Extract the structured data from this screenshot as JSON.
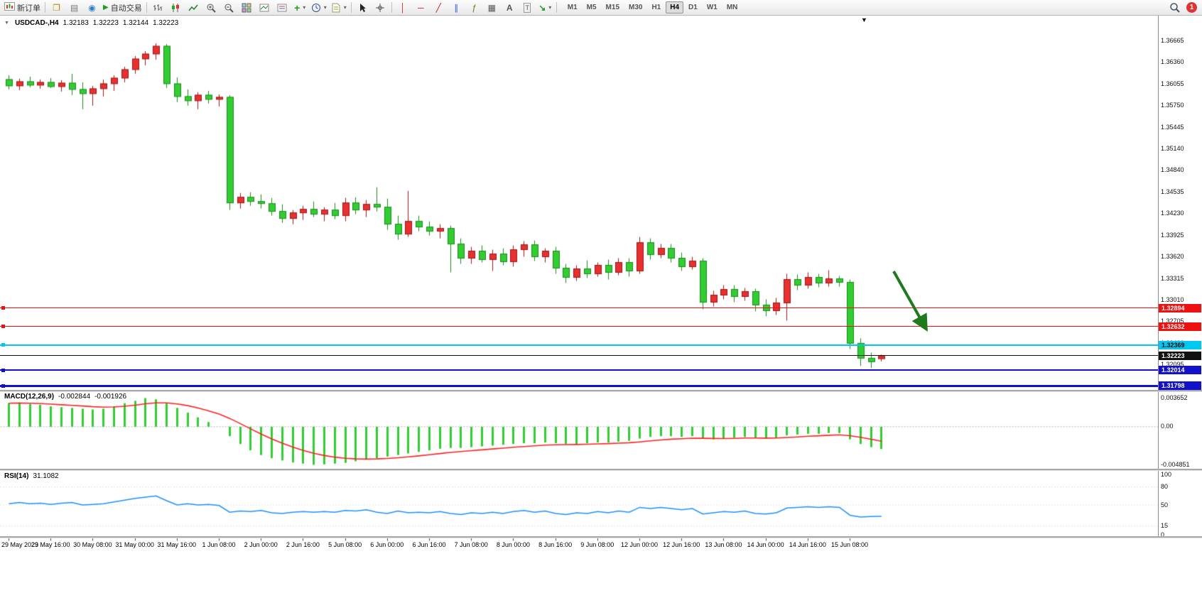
{
  "toolbar": {
    "new_order_label": "新订单",
    "auto_trading_label": "自动交易",
    "timeframes": [
      "M1",
      "M5",
      "M15",
      "M30",
      "H1",
      "H4",
      "D1",
      "W1",
      "MN"
    ],
    "active_timeframe": "H4",
    "notification_count": "1"
  },
  "icons": {
    "collapse": "▼",
    "shift_marker": "▼",
    "caret": "▾",
    "windows": "❐",
    "profiles": "▤",
    "alerts": "◉",
    "autotrade_play": "▶",
    "add_indicator": "+",
    "vline": "│",
    "hline": "─",
    "trendline": "╱",
    "channel": "∥",
    "fibonacci": "ƒ",
    "shapes": "▦",
    "text": "A",
    "label": "T",
    "arrows": "↘"
  },
  "chart": {
    "header": {
      "symbol_period": "USDCAD-,H4",
      "open": "1.32183",
      "high": "1.32223",
      "low": "1.32144",
      "close": "1.32223"
    },
    "price_axis_labels": [
      "1.36665",
      "1.36360",
      "1.36055",
      "1.35750",
      "1.35445",
      "1.35140",
      "1.34840",
      "1.34535",
      "1.34230",
      "1.33925",
      "1.33620",
      "1.33315",
      "1.33010",
      "1.32705",
      "1.32400",
      "1.32095",
      "1.31790"
    ],
    "levels": [
      {
        "name": "resistance-line-1",
        "label": "1.32894",
        "value": 1.32894,
        "color": "#ee1111",
        "text_color": "#ffffff",
        "thickness": 1,
        "handle": true
      },
      {
        "name": "resistance-line-2",
        "label": "1.32632",
        "value": 1.32632,
        "color": "#ee1111",
        "text_color": "#ffffff",
        "thickness": 1,
        "handle": true
      },
      {
        "name": "support-line-cyan",
        "label": "1.32369",
        "value": 1.32369,
        "color": "#00c8f0",
        "text_color": "#000000",
        "thickness": 2,
        "handle": true
      },
      {
        "name": "current-price-line",
        "label": "1.32223",
        "value": 1.32223,
        "color": "#111111",
        "text_color": "#ffffff",
        "thickness": 1,
        "handle": false
      },
      {
        "name": "support-line-blue-1",
        "label": "1.32014",
        "value": 1.32014,
        "color": "#1212cc",
        "text_color": "#ffffff",
        "thickness": 2,
        "handle": true
      },
      {
        "name": "support-line-blue-2",
        "label": "1.31798",
        "value": 1.31798,
        "color": "#1212cc",
        "text_color": "#ffffff",
        "thickness": 3,
        "handle": true
      }
    ],
    "annotation": {
      "type": "arrow",
      "direction": "down-right",
      "color": "#1f7a1f"
    }
  },
  "macd": {
    "title": "MACD(12,26,9)",
    "main_value": "-0.002844",
    "signal_value": "-0.001926",
    "axis_labels": [
      "0.003652",
      "0.00",
      "-0.004851"
    ]
  },
  "rsi": {
    "title": "RSI(14)",
    "value": "31.1082",
    "axis_labels": [
      "100",
      "80",
      "50",
      "15",
      "0"
    ]
  },
  "chart_data": [
    {
      "type": "candlestick",
      "title": "USDCAD- H4",
      "note": "red = bullish, green = bearish (Chinese color convention)",
      "up_color": "#e83030",
      "down_color": "#32cd32",
      "ylim": [
        1.3174,
        1.3682
      ],
      "x_tick_labels": [
        {
          "bar": 0,
          "label": "29 May 2023"
        },
        {
          "bar": 4,
          "label": "29 May 16:00"
        },
        {
          "bar": 8,
          "label": "30 May 08:00"
        },
        {
          "bar": 12,
          "label": "31 May 00:00"
        },
        {
          "bar": 16,
          "label": "31 May 16:00"
        },
        {
          "bar": 20,
          "label": "1 Jun 08:00"
        },
        {
          "bar": 24,
          "label": "2 Jun 00:00"
        },
        {
          "bar": 28,
          "label": "2 Jun 16:00"
        },
        {
          "bar": 32,
          "label": "5 Jun 08:00"
        },
        {
          "bar": 36,
          "label": "6 Jun 00:00"
        },
        {
          "bar": 40,
          "label": "6 Jun 16:00"
        },
        {
          "bar": 44,
          "label": "7 Jun 08:00"
        },
        {
          "bar": 48,
          "label": "8 Jun 00:00"
        },
        {
          "bar": 52,
          "label": "8 Jun 16:00"
        },
        {
          "bar": 56,
          "label": "9 Jun 08:00"
        },
        {
          "bar": 60,
          "label": "12 Jun 00:00"
        },
        {
          "bar": 64,
          "label": "12 Jun 16:00"
        },
        {
          "bar": 68,
          "label": "13 Jun 08:00"
        },
        {
          "bar": 72,
          "label": "14 Jun 00:00"
        },
        {
          "bar": 76,
          "label": "14 Jun 16:00"
        },
        {
          "bar": 80,
          "label": "15 Jun 08:00"
        }
      ],
      "ohlc": [
        [
          1.3612,
          1.3618,
          1.3598,
          1.3603
        ],
        [
          1.3603,
          1.3613,
          1.3597,
          1.3609
        ],
        [
          1.3609,
          1.3616,
          1.3601,
          1.3604
        ],
        [
          1.3604,
          1.3612,
          1.3599,
          1.3608
        ],
        [
          1.3608,
          1.3614,
          1.36,
          1.3602
        ],
        [
          1.3602,
          1.3611,
          1.3595,
          1.3607
        ],
        [
          1.3607,
          1.362,
          1.359,
          1.3598
        ],
        [
          1.3598,
          1.3608,
          1.357,
          1.3592
        ],
        [
          1.3592,
          1.3603,
          1.3575,
          1.3599
        ],
        [
          1.3599,
          1.3612,
          1.3588,
          1.3606
        ],
        [
          1.3606,
          1.3618,
          1.3596,
          1.3614
        ],
        [
          1.3614,
          1.363,
          1.3608,
          1.3626
        ],
        [
          1.3626,
          1.3645,
          1.362,
          1.3641
        ],
        [
          1.3641,
          1.3652,
          1.3632,
          1.3648
        ],
        [
          1.3648,
          1.3663,
          1.364,
          1.3659
        ],
        [
          1.3659,
          1.3662,
          1.36,
          1.3606
        ],
        [
          1.3606,
          1.3615,
          1.358,
          1.3588
        ],
        [
          1.3588,
          1.3598,
          1.3575,
          1.3582
        ],
        [
          1.3582,
          1.3594,
          1.357,
          1.359
        ],
        [
          1.359,
          1.3596,
          1.3578,
          1.3584
        ],
        [
          1.3584,
          1.3591,
          1.3574,
          1.3587
        ],
        [
          1.3587,
          1.359,
          1.3428,
          1.3438
        ],
        [
          1.3438,
          1.3452,
          1.343,
          1.3446
        ],
        [
          1.3446,
          1.3453,
          1.3434,
          1.344
        ],
        [
          1.344,
          1.345,
          1.343,
          1.3437
        ],
        [
          1.3437,
          1.3445,
          1.342,
          1.3426
        ],
        [
          1.3426,
          1.3436,
          1.341,
          1.3416
        ],
        [
          1.3416,
          1.3428,
          1.3408,
          1.3424
        ],
        [
          1.3424,
          1.3434,
          1.3414,
          1.3429
        ],
        [
          1.3429,
          1.344,
          1.3418,
          1.3422
        ],
        [
          1.3422,
          1.3432,
          1.3412,
          1.3428
        ],
        [
          1.3428,
          1.3438,
          1.3415,
          1.342
        ],
        [
          1.342,
          1.3445,
          1.3412,
          1.3438
        ],
        [
          1.3438,
          1.3446,
          1.3422,
          1.3428
        ],
        [
          1.3428,
          1.3442,
          1.3418,
          1.3436
        ],
        [
          1.3436,
          1.346,
          1.3426,
          1.3432
        ],
        [
          1.3432,
          1.3444,
          1.34,
          1.3408
        ],
        [
          1.3408,
          1.342,
          1.3386,
          1.3394
        ],
        [
          1.3394,
          1.3455,
          1.339,
          1.3412
        ],
        [
          1.3412,
          1.342,
          1.3398,
          1.3404
        ],
        [
          1.3404,
          1.3412,
          1.3392,
          1.3398
        ],
        [
          1.3398,
          1.3408,
          1.3388,
          1.3402
        ],
        [
          1.3402,
          1.3406,
          1.334,
          1.338
        ],
        [
          1.338,
          1.3388,
          1.3352,
          1.336
        ],
        [
          1.336,
          1.3376,
          1.3352,
          1.337
        ],
        [
          1.337,
          1.3378,
          1.3354,
          1.3358
        ],
        [
          1.3358,
          1.3372,
          1.3342,
          1.3366
        ],
        [
          1.3366,
          1.3374,
          1.335,
          1.3355
        ],
        [
          1.3355,
          1.3378,
          1.3348,
          1.3372
        ],
        [
          1.3372,
          1.3384,
          1.3362,
          1.3379
        ],
        [
          1.3379,
          1.3385,
          1.3356,
          1.3362
        ],
        [
          1.3362,
          1.3374,
          1.3354,
          1.337
        ],
        [
          1.337,
          1.3376,
          1.3338,
          1.3346
        ],
        [
          1.3346,
          1.3352,
          1.3325,
          1.3333
        ],
        [
          1.3333,
          1.335,
          1.3328,
          1.3345
        ],
        [
          1.3345,
          1.3357,
          1.3332,
          1.3338
        ],
        [
          1.3338,
          1.3354,
          1.3334,
          1.335
        ],
        [
          1.335,
          1.3358,
          1.333,
          1.334
        ],
        [
          1.334,
          1.336,
          1.3336,
          1.3354
        ],
        [
          1.3354,
          1.336,
          1.3334,
          1.3342
        ],
        [
          1.3342,
          1.339,
          1.3338,
          1.3382
        ],
        [
          1.3382,
          1.3388,
          1.3358,
          1.3365
        ],
        [
          1.3365,
          1.338,
          1.336,
          1.3374
        ],
        [
          1.3374,
          1.338,
          1.3354,
          1.336
        ],
        [
          1.336,
          1.3368,
          1.3342,
          1.3348
        ],
        [
          1.3348,
          1.3362,
          1.3344,
          1.3356
        ],
        [
          1.3356,
          1.336,
          1.3288,
          1.3298
        ],
        [
          1.3298,
          1.3314,
          1.3292,
          1.3308
        ],
        [
          1.3308,
          1.3322,
          1.3302,
          1.3316
        ],
        [
          1.3316,
          1.3322,
          1.3298,
          1.3306
        ],
        [
          1.3306,
          1.3318,
          1.33,
          1.3313
        ],
        [
          1.3313,
          1.3317,
          1.3285,
          1.3294
        ],
        [
          1.3294,
          1.3302,
          1.3278,
          1.3286
        ],
        [
          1.3286,
          1.3304,
          1.328,
          1.3297
        ],
        [
          1.3297,
          1.3338,
          1.3272,
          1.333
        ],
        [
          1.333,
          1.3337,
          1.3315,
          1.3322
        ],
        [
          1.3322,
          1.334,
          1.3317,
          1.3333
        ],
        [
          1.3333,
          1.3338,
          1.3319,
          1.3325
        ],
        [
          1.3325,
          1.3343,
          1.332,
          1.3331
        ],
        [
          1.3331,
          1.3335,
          1.332,
          1.3326
        ],
        [
          1.3326,
          1.333,
          1.3232,
          1.324
        ],
        [
          1.324,
          1.3247,
          1.3208,
          1.3219
        ],
        [
          1.3219,
          1.3227,
          1.3205,
          1.3214
        ],
        [
          1.32183,
          1.3224,
          1.32144,
          1.32223
        ]
      ]
    },
    {
      "type": "bar",
      "title": "MACD(12,26,9)",
      "bar_color": "#32cd32",
      "signal_color": "#ff2020",
      "signal_period": 9,
      "ylim": [
        -0.004851,
        0.003652
      ],
      "last_main": -0.002844,
      "last_signal": -0.001926,
      "values": [
        0.003,
        0.0031,
        0.0029,
        0.0028,
        0.0026,
        0.0025,
        0.0024,
        0.0023,
        0.0022,
        0.0023,
        0.0026,
        0.003,
        0.0033,
        0.00365,
        0.0035,
        0.003,
        0.0024,
        0.0018,
        0.0012,
        0.0006,
        0.0,
        -0.0012,
        -0.0022,
        -0.003,
        -0.0036,
        -0.004,
        -0.0043,
        -0.00455,
        -0.0047,
        -0.00485,
        -0.0048,
        -0.0047,
        -0.0046,
        -0.0044,
        -0.0042,
        -0.004,
        -0.0038,
        -0.0036,
        -0.0034,
        -0.0032,
        -0.003,
        -0.0028,
        -0.0027,
        -0.0027,
        -0.0026,
        -0.0025,
        -0.0024,
        -0.0023,
        -0.0022,
        -0.0021,
        -0.0021,
        -0.002,
        -0.0021,
        -0.0022,
        -0.0022,
        -0.0021,
        -0.002,
        -0.002,
        -0.0019,
        -0.0018,
        -0.0015,
        -0.0013,
        -0.0012,
        -0.0012,
        -0.0013,
        -0.0012,
        -0.0015,
        -0.0016,
        -0.0015,
        -0.0014,
        -0.0013,
        -0.0014,
        -0.0015,
        -0.0014,
        -0.0011,
        -0.001,
        -0.0009,
        -0.0009,
        -0.0008,
        -0.0008,
        -0.0016,
        -0.0022,
        -0.0026,
        -0.002844
      ]
    },
    {
      "type": "line",
      "title": "RSI(14)",
      "line_color": "#1e90ff",
      "ylim": [
        0,
        100
      ],
      "levels": [
        80,
        50,
        15
      ],
      "last_value": 31.1082,
      "values": [
        52,
        54,
        52,
        53,
        51,
        53,
        54,
        50,
        51,
        52,
        55,
        58,
        61,
        63,
        65,
        57,
        50,
        52,
        50,
        51,
        49,
        38,
        40,
        39,
        41,
        37,
        36,
        38,
        39,
        38,
        39,
        38,
        41,
        40,
        42,
        38,
        36,
        40,
        37,
        38,
        37,
        39,
        36,
        34,
        37,
        36,
        38,
        36,
        39,
        41,
        38,
        40,
        36,
        34,
        37,
        36,
        39,
        37,
        40,
        38,
        46,
        44,
        46,
        44,
        42,
        44,
        35,
        37,
        39,
        38,
        40,
        36,
        35,
        37,
        45,
        46,
        47,
        46,
        47,
        46,
        33,
        30,
        31,
        31.1
      ]
    }
  ]
}
